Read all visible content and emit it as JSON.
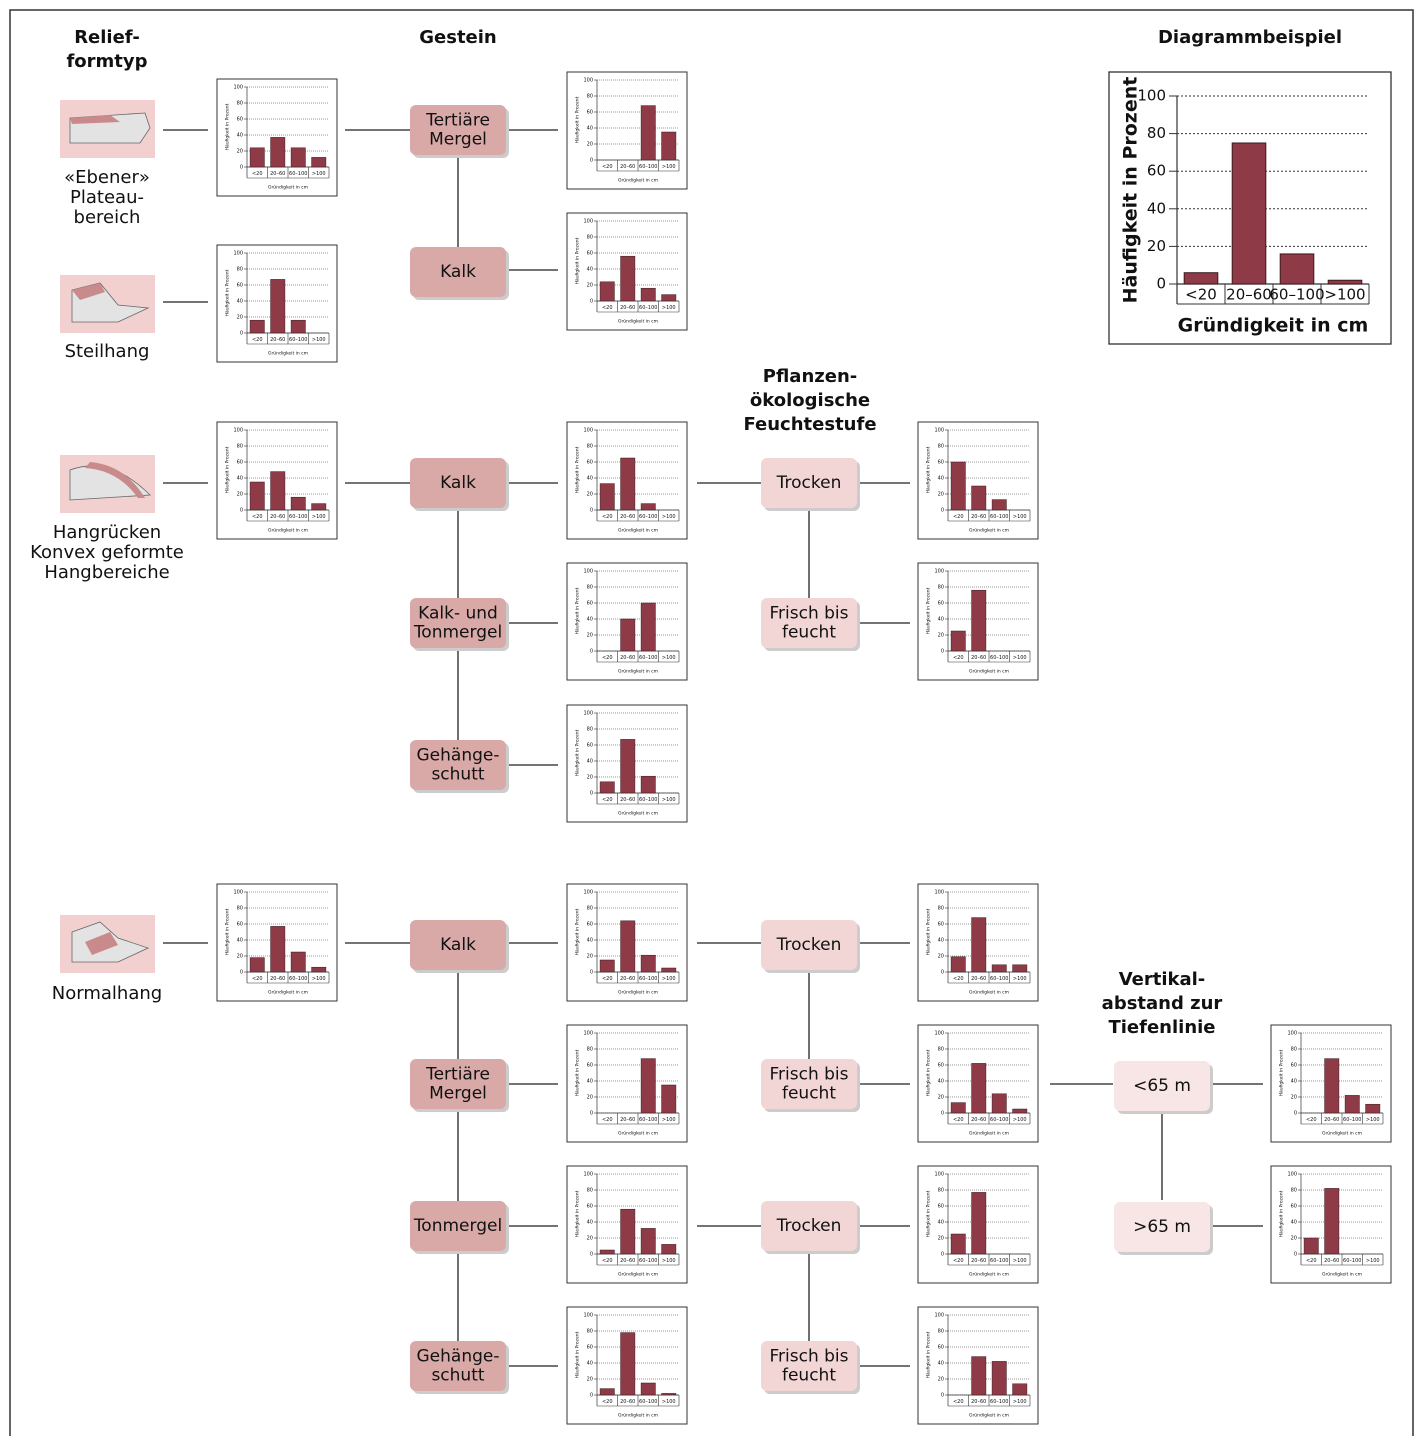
{
  "headers": [
    {
      "lines": [
        "Relief-",
        "formtyp"
      ]
    },
    {
      "lines": [
        "Gestein"
      ]
    },
    {
      "lines": [
        "Pflanzen-",
        "ökologische",
        "Feuchtestufe"
      ]
    },
    {
      "lines": [
        "Vertikal-",
        "abstand zur",
        "Tiefenlinie"
      ]
    }
  ],
  "relief": [
    {
      "lines": [
        "«Ebener»",
        "Plateau-",
        "bereich"
      ]
    },
    {
      "lines": [
        "Steilhang"
      ]
    },
    {
      "lines": [
        "Hangrücken",
        "Konvex geformte",
        "Hangbereiche"
      ]
    },
    {
      "lines": [
        "Normalhang"
      ]
    }
  ],
  "nodes": [
    {
      "lines": [
        "Tertiäre",
        "Mergel"
      ]
    },
    {
      "lines": [
        "Kalk"
      ]
    },
    {
      "lines": [
        "Kalk"
      ]
    },
    {
      "lines": [
        "Kalk- und",
        "Tonmergel"
      ]
    },
    {
      "lines": [
        "Gehänge-",
        "schutt"
      ]
    },
    {
      "lines": [
        "Kalk"
      ]
    },
    {
      "lines": [
        "Tertiäre",
        "Mergel"
      ]
    },
    {
      "lines": [
        "Tonmergel"
      ]
    },
    {
      "lines": [
        "Gehänge-",
        "schutt"
      ]
    },
    {
      "lines": [
        "Trocken"
      ]
    },
    {
      "lines": [
        "Frisch bis",
        "feucht"
      ]
    },
    {
      "lines": [
        "Trocken"
      ]
    },
    {
      "lines": [
        "Frisch bis",
        "feucht"
      ]
    },
    {
      "lines": [
        "Trocken"
      ]
    },
    {
      "lines": [
        "Frisch bis",
        "feucht"
      ]
    },
    {
      "lines": [
        "<65 m"
      ]
    },
    {
      "lines": [
        ">65 m"
      ]
    }
  ],
  "chart_data": [
    {
      "type": "bar",
      "title": "Diagrammbeispiel",
      "categories": [
        "<20",
        "20–60",
        "60–100",
        ">100"
      ],
      "values": [
        6,
        75,
        16,
        2
      ],
      "color": "#8e3b47",
      "ylim": [
        0,
        100
      ],
      "yticks": [
        0,
        20,
        40,
        60,
        80,
        100
      ],
      "ylabel": "Häufigkeit in Prozent",
      "xlabel": "Gründigkeit in cm",
      "grid": true
    },
    {
      "type": "bar",
      "categories": [
        "<20",
        "20–60",
        "60–100",
        ">100"
      ],
      "values": [
        24,
        37,
        24,
        12
      ],
      "color": "#8e3b47",
      "ylim": [
        0,
        100
      ],
      "yticks": [
        0,
        20,
        40,
        60,
        80,
        100
      ],
      "ylabel": "Häufigkeit in Prozent",
      "xlabel": "Gründigkeit in cm",
      "grid": true
    },
    {
      "type": "bar",
      "categories": [
        "<20",
        "20–60",
        "60–100",
        ">100"
      ],
      "values": [
        0,
        0,
        68,
        35
      ],
      "color": "#8e3b47",
      "ylim": [
        0,
        100
      ],
      "yticks": [
        0,
        20,
        40,
        60,
        80,
        100
      ],
      "ylabel": "Häufigkeit in Prozent",
      "xlabel": "Gründigkeit in cm",
      "grid": true
    },
    {
      "type": "bar",
      "categories": [
        "<20",
        "20–60",
        "60–100",
        ">100"
      ],
      "values": [
        24,
        56,
        16,
        8
      ],
      "color": "#8e3b47",
      "ylim": [
        0,
        100
      ],
      "yticks": [
        0,
        20,
        40,
        60,
        80,
        100
      ],
      "ylabel": "Häufigkeit in Prozent",
      "xlabel": "Gründigkeit in cm",
      "grid": true
    },
    {
      "type": "bar",
      "categories": [
        "<20",
        "20–60",
        "60–100",
        ">100"
      ],
      "values": [
        16,
        67,
        16,
        0
      ],
      "color": "#8e3b47",
      "ylim": [
        0,
        100
      ],
      "yticks": [
        0,
        20,
        40,
        60,
        80,
        100
      ],
      "ylabel": "Häufigkeit in Prozent",
      "xlabel": "Gründigkeit in cm",
      "grid": true
    },
    {
      "type": "bar",
      "categories": [
        "<20",
        "20–60",
        "60–100",
        ">100"
      ],
      "values": [
        35,
        48,
        16,
        8
      ],
      "color": "#8e3b47",
      "ylim": [
        0,
        100
      ],
      "yticks": [
        0,
        20,
        40,
        60,
        80,
        100
      ],
      "ylabel": "Häufigkeit in Prozent",
      "xlabel": "Gründigkeit in cm",
      "grid": true
    },
    {
      "type": "bar",
      "categories": [
        "<20",
        "20–60",
        "60–100",
        ">100"
      ],
      "values": [
        33,
        65,
        8,
        0
      ],
      "color": "#8e3b47",
      "ylim": [
        0,
        100
      ],
      "yticks": [
        0,
        20,
        40,
        60,
        80,
        100
      ],
      "ylabel": "Häufigkeit in Prozent",
      "xlabel": "Gründigkeit in cm",
      "grid": true
    },
    {
      "type": "bar",
      "categories": [
        "<20",
        "20–60",
        "60–100",
        ">100"
      ],
      "values": [
        60,
        30,
        13,
        0
      ],
      "color": "#8e3b47",
      "ylim": [
        0,
        100
      ],
      "yticks": [
        0,
        20,
        40,
        60,
        80,
        100
      ],
      "ylabel": "Häufigkeit in Prozent",
      "xlabel": "Gründigkeit in cm",
      "grid": true
    },
    {
      "type": "bar",
      "categories": [
        "<20",
        "20–60",
        "60–100",
        ">100"
      ],
      "values": [
        0,
        40,
        60,
        0
      ],
      "color": "#8e3b47",
      "ylim": [
        0,
        100
      ],
      "yticks": [
        0,
        20,
        40,
        60,
        80,
        100
      ],
      "ylabel": "Häufigkeit in Prozent",
      "xlabel": "Gründigkeit in cm",
      "grid": true
    },
    {
      "type": "bar",
      "categories": [
        "<20",
        "20–60",
        "60–100",
        ">100"
      ],
      "values": [
        25,
        76,
        0,
        0
      ],
      "color": "#8e3b47",
      "ylim": [
        0,
        100
      ],
      "yticks": [
        0,
        20,
        40,
        60,
        80,
        100
      ],
      "ylabel": "Häufigkeit in Prozent",
      "xlabel": "Gründigkeit in cm",
      "grid": true
    },
    {
      "type": "bar",
      "categories": [
        "<20",
        "20–60",
        "60–100",
        ">100"
      ],
      "values": [
        14,
        67,
        21,
        0
      ],
      "color": "#8e3b47",
      "ylim": [
        0,
        100
      ],
      "yticks": [
        0,
        20,
        40,
        60,
        80,
        100
      ],
      "ylabel": "Häufigkeit in Prozent",
      "xlabel": "Gründigkeit in cm",
      "grid": true
    },
    {
      "type": "bar",
      "categories": [
        "<20",
        "20–60",
        "60–100",
        ">100"
      ],
      "values": [
        18,
        57,
        25,
        6
      ],
      "color": "#8e3b47",
      "ylim": [
        0,
        100
      ],
      "yticks": [
        0,
        20,
        40,
        60,
        80,
        100
      ],
      "ylabel": "Häufigkeit in Prozent",
      "xlabel": "Gründigkeit in cm",
      "grid": true
    },
    {
      "type": "bar",
      "categories": [
        "<20",
        "20–60",
        "60–100",
        ">100"
      ],
      "values": [
        15,
        64,
        21,
        5
      ],
      "color": "#8e3b47",
      "ylim": [
        0,
        100
      ],
      "yticks": [
        0,
        20,
        40,
        60,
        80,
        100
      ],
      "ylabel": "Häufigkeit in Prozent",
      "xlabel": "Gründigkeit in cm",
      "grid": true
    },
    {
      "type": "bar",
      "categories": [
        "<20",
        "20–60",
        "60–100",
        ">100"
      ],
      "values": [
        19,
        68,
        9,
        9
      ],
      "color": "#8e3b47",
      "ylim": [
        0,
        100
      ],
      "yticks": [
        0,
        20,
        40,
        60,
        80,
        100
      ],
      "ylabel": "Häufigkeit in Prozent",
      "xlabel": "Gründigkeit in cm",
      "grid": true
    },
    {
      "type": "bar",
      "categories": [
        "<20",
        "20–60",
        "60–100",
        ">100"
      ],
      "values": [
        0,
        0,
        68,
        35
      ],
      "color": "#8e3b47",
      "ylim": [
        0,
        100
      ],
      "yticks": [
        0,
        20,
        40,
        60,
        80,
        100
      ],
      "ylabel": "Häufigkeit in Prozent",
      "xlabel": "Gründigkeit in cm",
      "grid": true
    },
    {
      "type": "bar",
      "categories": [
        "<20",
        "20–60",
        "60–100",
        ">100"
      ],
      "values": [
        13,
        62,
        24,
        5
      ],
      "color": "#8e3b47",
      "ylim": [
        0,
        100
      ],
      "yticks": [
        0,
        20,
        40,
        60,
        80,
        100
      ],
      "ylabel": "Häufigkeit in Prozent",
      "xlabel": "Gründigkeit in cm",
      "grid": true
    },
    {
      "type": "bar",
      "categories": [
        "<20",
        "20–60",
        "60–100",
        ">100"
      ],
      "values": [
        0,
        68,
        22,
        11
      ],
      "color": "#8e3b47",
      "ylim": [
        0,
        100
      ],
      "yticks": [
        0,
        20,
        40,
        60,
        80,
        100
      ],
      "ylabel": "Häufigkeit in Prozent",
      "xlabel": "Gründigkeit in cm",
      "grid": true
    },
    {
      "type": "bar",
      "categories": [
        "<20",
        "20–60",
        "60–100",
        ">100"
      ],
      "values": [
        5,
        56,
        32,
        12
      ],
      "color": "#8e3b47",
      "ylim": [
        0,
        100
      ],
      "yticks": [
        0,
        20,
        40,
        60,
        80,
        100
      ],
      "ylabel": "Häufigkeit in Prozent",
      "xlabel": "Gründigkeit in cm",
      "grid": true
    },
    {
      "type": "bar",
      "categories": [
        "<20",
        "20–60",
        "60–100",
        ">100"
      ],
      "values": [
        25,
        77,
        0,
        0
      ],
      "color": "#8e3b47",
      "ylim": [
        0,
        100
      ],
      "yticks": [
        0,
        20,
        40,
        60,
        80,
        100
      ],
      "ylabel": "Häufigkeit in Prozent",
      "xlabel": "Gründigkeit in cm",
      "grid": true
    },
    {
      "type": "bar",
      "categories": [
        "<20",
        "20–60",
        "60–100",
        ">100"
      ],
      "values": [
        20,
        82,
        0,
        0
      ],
      "color": "#8e3b47",
      "ylim": [
        0,
        100
      ],
      "yticks": [
        0,
        20,
        40,
        60,
        80,
        100
      ],
      "ylabel": "Häufigkeit in Prozent",
      "xlabel": "Gründigkeit in cm",
      "grid": true
    },
    {
      "type": "bar",
      "categories": [
        "<20",
        "20–60",
        "60–100",
        ">100"
      ],
      "values": [
        8,
        78,
        15,
        2
      ],
      "color": "#8e3b47",
      "ylim": [
        0,
        100
      ],
      "yticks": [
        0,
        20,
        40,
        60,
        80,
        100
      ],
      "ylabel": "Häufigkeit in Prozent",
      "xlabel": "Gründigkeit in cm",
      "grid": true
    },
    {
      "type": "bar",
      "categories": [
        "<20",
        "20–60",
        "60–100",
        ">100"
      ],
      "values": [
        0,
        48,
        42,
        14
      ],
      "color": "#8e3b47",
      "ylim": [
        0,
        100
      ],
      "yticks": [
        0,
        20,
        40,
        60,
        80,
        100
      ],
      "ylabel": "Häufigkeit in Prozent",
      "xlabel": "Gründigkeit in cm",
      "grid": true
    }
  ]
}
